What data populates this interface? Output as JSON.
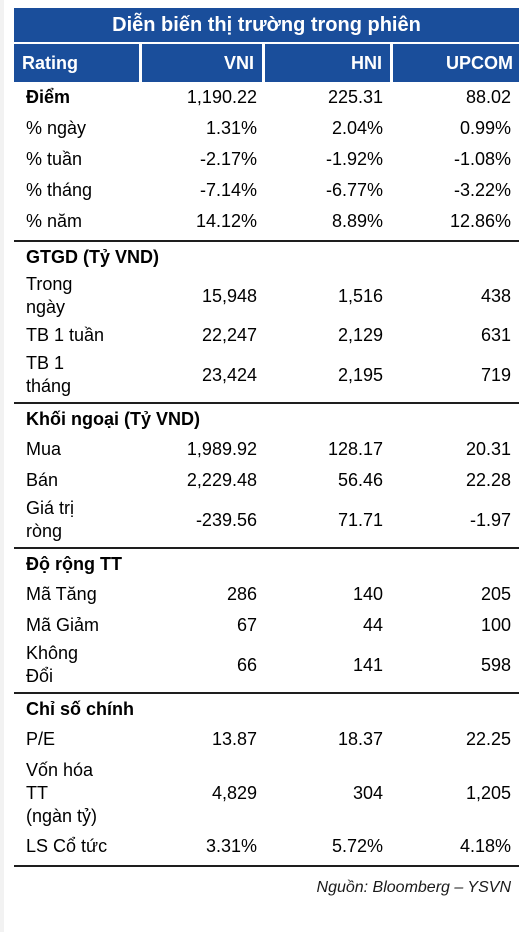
{
  "title": "Diễn biến thị trường trong phiên",
  "header": [
    "Rating",
    "VNI",
    "HNI",
    "UPCOM"
  ],
  "diem": {
    "label": "Điểm",
    "values": [
      "1,190.22",
      "225.31",
      "88.02"
    ]
  },
  "sections": [
    {
      "title": "",
      "rows": [
        {
          "label": "% ngày",
          "values": [
            "1.31%",
            "2.04%",
            "0.99%"
          ]
        },
        {
          "label": "% tuần",
          "values": [
            "-2.17%",
            "-1.92%",
            "-1.08%"
          ]
        },
        {
          "label": "% tháng",
          "values": [
            "-7.14%",
            "-6.77%",
            "-3.22%"
          ]
        },
        {
          "label": "% năm",
          "values": [
            "14.12%",
            "8.89%",
            "12.86%"
          ]
        }
      ]
    },
    {
      "title": "GTGD (Tỷ VND)",
      "rows": [
        {
          "label": "Trong\nngày",
          "values": [
            "15,948",
            "1,516",
            "438"
          ]
        },
        {
          "label": "TB 1 tuần",
          "values": [
            "22,247",
            "2,129",
            "631"
          ]
        },
        {
          "label": "TB 1\ntháng",
          "values": [
            "23,424",
            "2,195",
            "719"
          ]
        }
      ]
    },
    {
      "title": "Khối ngoại (Tỷ VND)",
      "rows": [
        {
          "label": "Mua",
          "values": [
            "1,989.92",
            "128.17",
            "20.31"
          ]
        },
        {
          "label": "Bán",
          "values": [
            "2,229.48",
            "56.46",
            "22.28"
          ]
        },
        {
          "label": "Giá trị\nròng",
          "values": [
            "-239.56",
            "71.71",
            "-1.97"
          ]
        }
      ]
    },
    {
      "title": "Độ rộng TT",
      "rows": [
        {
          "label": "Mã Tăng",
          "values": [
            "286",
            "140",
            "205"
          ]
        },
        {
          "label": "Mã Giảm",
          "values": [
            "67",
            "44",
            "100"
          ]
        },
        {
          "label": "Không\nĐổi",
          "values": [
            "66",
            "141",
            "598"
          ]
        }
      ]
    },
    {
      "title": "Chỉ số chính",
      "rows": [
        {
          "label": "P/E",
          "values": [
            "13.87",
            "18.37",
            "22.25"
          ]
        },
        {
          "label": "Vốn hóa\nTT\n(ngàn tỷ)",
          "values": [
            "4,829",
            "304",
            "1,205"
          ]
        },
        {
          "label": "LS Cổ tức",
          "values": [
            "3.31%",
            "5.72%",
            "4.18%"
          ]
        }
      ]
    }
  ],
  "source": "Nguồn: Bloomberg – YSVN"
}
